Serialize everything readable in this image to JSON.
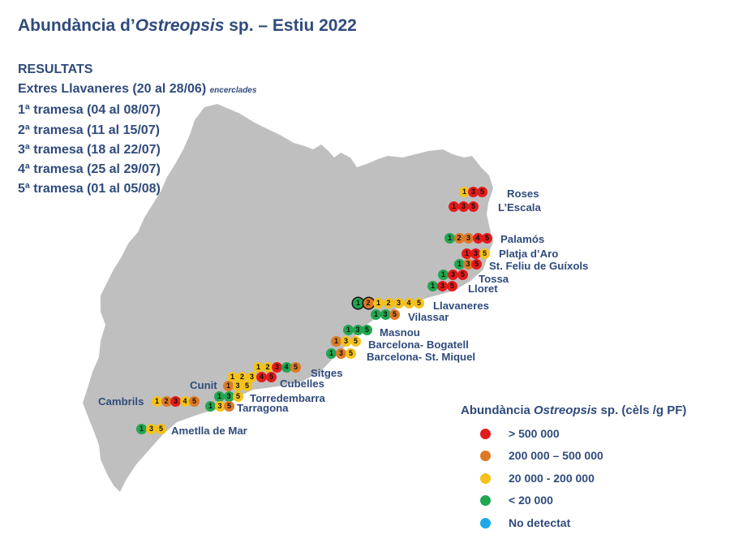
{
  "title": {
    "prefix": "Abundància d’",
    "species": "Ostreopsis",
    "suffix": " sp. – Estiu 2022"
  },
  "results": {
    "heading": "RESULTATS",
    "extra_label": "Extres Llavaneres (20 al 28/06)",
    "extra_note": "encerclades",
    "shipments": [
      "1ª tramesa (04 al 08/07)",
      "2ª tramesa (11 al 15/07)",
      "3ª tramesa (18 al 22/07)",
      "4ª tramesa (25 al 29/07)",
      "5ª tramesa (01 al 05/08)"
    ]
  },
  "colors": {
    "map": "#bfbfbf",
    "text": "#2f4b7c",
    "high": "#e41b1b",
    "mid_high": "#dd7a26",
    "mid": "#f5c21b",
    "low": "#22a650",
    "none": "#1ba9e8"
  },
  "legend": {
    "title_prefix": "Abundància ",
    "title_species": "Ostreopsis",
    "title_suffix": " sp. (cèls /g PF)",
    "items": [
      {
        "label": "> 500 000",
        "level": "high"
      },
      {
        "label": "200 000 – 500 000",
        "level": "mid_high"
      },
      {
        "label": "20 000 - 200 000",
        "level": "mid"
      },
      {
        "label": "< 20 000",
        "level": "low"
      },
      {
        "label": "No detectat",
        "level": "none"
      }
    ]
  },
  "sites": [
    {
      "name": "Roses",
      "samples": [
        {
          "n": "1",
          "level": "mid"
        },
        {
          "n": "3",
          "level": "high"
        },
        {
          "n": "5",
          "level": "high"
        }
      ]
    },
    {
      "name": "L’Escala",
      "samples": [
        {
          "n": "1",
          "level": "high"
        },
        {
          "n": "3",
          "level": "high"
        },
        {
          "n": "5",
          "level": "high"
        }
      ]
    },
    {
      "name": "Palamós",
      "samples": [
        {
          "n": "1",
          "level": "low"
        },
        {
          "n": "2",
          "level": "mid_high"
        },
        {
          "n": "3",
          "level": "mid_high"
        },
        {
          "n": "4",
          "level": "high"
        },
        {
          "n": "5",
          "level": "high"
        }
      ]
    },
    {
      "name": "Platja d’Aro",
      "samples": [
        {
          "n": "1",
          "level": "high"
        },
        {
          "n": "3",
          "level": "high"
        },
        {
          "n": "5",
          "level": "mid"
        }
      ]
    },
    {
      "name": "St. Feliu de Guíxols",
      "samples": [
        {
          "n": "1",
          "level": "low"
        },
        {
          "n": "3",
          "level": "mid_high"
        },
        {
          "n": "5",
          "level": "high"
        }
      ]
    },
    {
      "name": "Tossa",
      "samples": [
        {
          "n": "1",
          "level": "low"
        },
        {
          "n": "3",
          "level": "high"
        },
        {
          "n": "5",
          "level": "high"
        }
      ]
    },
    {
      "name": "Lloret",
      "samples": [
        {
          "n": "1",
          "level": "low"
        },
        {
          "n": "3",
          "level": "high"
        },
        {
          "n": "5",
          "level": "high"
        }
      ]
    },
    {
      "name": "Llavaneres",
      "samples": [
        {
          "n": "1",
          "level": "low",
          "extra": true
        },
        {
          "n": "2",
          "level": "mid_high",
          "extra": true
        },
        {
          "n": "1",
          "level": "mid"
        },
        {
          "n": "2",
          "level": "mid"
        },
        {
          "n": "3",
          "level": "mid"
        },
        {
          "n": "4",
          "level": "mid"
        },
        {
          "n": "5",
          "level": "mid"
        }
      ]
    },
    {
      "name": "Vilassar",
      "samples": [
        {
          "n": "1",
          "level": "low"
        },
        {
          "n": "3",
          "level": "low"
        },
        {
          "n": "5",
          "level": "mid_high"
        }
      ]
    },
    {
      "name": "Masnou",
      "samples": [
        {
          "n": "1",
          "level": "low"
        },
        {
          "n": "3",
          "level": "low"
        },
        {
          "n": "5",
          "level": "low"
        }
      ]
    },
    {
      "name": "Barcelona- Bogatell",
      "samples": [
        {
          "n": "1",
          "level": "mid_high"
        },
        {
          "n": "3",
          "level": "mid"
        },
        {
          "n": "5",
          "level": "mid"
        }
      ]
    },
    {
      "name": "Barcelona- St. Miquel",
      "samples": [
        {
          "n": "1",
          "level": "low"
        },
        {
          "n": "3",
          "level": "mid_high"
        },
        {
          "n": "5",
          "level": "mid"
        }
      ]
    },
    {
      "name": "Sitges",
      "samples": [
        {
          "n": "1",
          "level": "mid"
        },
        {
          "n": "2",
          "level": "mid"
        },
        {
          "n": "3",
          "level": "high"
        },
        {
          "n": "4",
          "level": "low"
        },
        {
          "n": "5",
          "level": "mid_high"
        }
      ]
    },
    {
      "name": "Cubelles",
      "samples": [
        {
          "n": "1",
          "level": "mid"
        },
        {
          "n": "2",
          "level": "mid"
        },
        {
          "n": "3",
          "level": "mid"
        },
        {
          "n": "4",
          "level": "high"
        },
        {
          "n": "5",
          "level": "high"
        }
      ]
    },
    {
      "name": "Cunit",
      "samples": [
        {
          "n": "1",
          "level": "mid_high"
        },
        {
          "n": "3",
          "level": "mid"
        },
        {
          "n": "5",
          "level": "mid"
        }
      ]
    },
    {
      "name": "Torredembarra",
      "samples": [
        {
          "n": "1",
          "level": "low"
        },
        {
          "n": "3",
          "level": "low"
        },
        {
          "n": "5",
          "level": "mid"
        }
      ]
    },
    {
      "name": "Tarragona",
      "samples": [
        {
          "n": "1",
          "level": "low"
        },
        {
          "n": "3",
          "level": "mid"
        },
        {
          "n": "5",
          "level": "mid_high"
        }
      ]
    },
    {
      "name": "Cambrils",
      "samples": [
        {
          "n": "1",
          "level": "mid"
        },
        {
          "n": "2",
          "level": "mid_high"
        },
        {
          "n": "3",
          "level": "high"
        },
        {
          "n": "4",
          "level": "mid"
        },
        {
          "n": "5",
          "level": "mid_high"
        }
      ]
    },
    {
      "name": "Ametlla de Mar",
      "samples": [
        {
          "n": "1",
          "level": "low"
        },
        {
          "n": "3",
          "level": "mid"
        },
        {
          "n": "5",
          "level": "mid"
        }
      ]
    }
  ]
}
